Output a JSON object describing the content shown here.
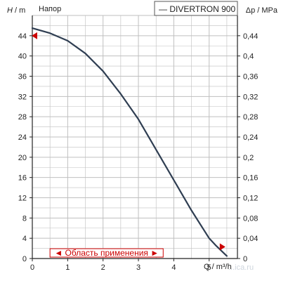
{
  "chart_data": {
    "type": "line",
    "series": [
      {
        "name": "DIVERTRON 900",
        "color": "#2f3e52",
        "x": [
          0,
          0.5,
          1,
          1.5,
          2,
          2.5,
          3,
          3.5,
          4,
          4.5,
          5,
          5.2,
          5.5
        ],
        "y": [
          45.5,
          44.5,
          43,
          40.5,
          37,
          32.5,
          27.5,
          21.5,
          15.5,
          9.5,
          4,
          2.5,
          0.5
        ]
      }
    ],
    "xlabel": "Q / m³/h",
    "ylabel_left_var": "H",
    "ylabel_left_unit": "m",
    "ylabel_right": "Δp / MPa",
    "title_top_left": "Напор",
    "legend_label": "— DIVERTRON 900",
    "legend_placement": "top-right",
    "xlim": [
      0,
      5.8
    ],
    "ylim_left": [
      0,
      48
    ],
    "ylim_right": [
      0,
      0.48
    ],
    "x_ticks": [
      0,
      1,
      2,
      3,
      4,
      5
    ],
    "x_tick_labels": [
      "0",
      "1",
      "2",
      "3",
      "4",
      "5"
    ],
    "y_ticks_left": [
      0,
      4,
      8,
      12,
      16,
      20,
      24,
      28,
      32,
      36,
      40,
      44
    ],
    "y_tick_labels_left": [
      "0",
      "4",
      "8",
      "12",
      "16",
      "20",
      "24",
      "28",
      "32",
      "36",
      "40",
      "44"
    ],
    "y_ticks_right": [
      0,
      0.04,
      0.08,
      0.12,
      0.16,
      0.2,
      0.24,
      0.28,
      0.32,
      0.36,
      0.4,
      0.44
    ],
    "y_tick_labels_right": [
      "0",
      "0,04",
      "0,08",
      "0,12",
      "0,16",
      "0,2",
      "0,24",
      "0,28",
      "0,32",
      "0,36",
      "0,4",
      "0,44"
    ],
    "grid": true,
    "grid_color": "#bfbfbf",
    "range_annotation": {
      "text": "◄ Область применения ►",
      "color": "#cc0000",
      "x_start": 0.5,
      "x_end": 3.7
    },
    "markers": [
      {
        "shape": "triangle-left",
        "x": 0,
        "y": 44,
        "color": "#cc0000"
      },
      {
        "shape": "triangle-right",
        "x": 5.3,
        "y": 2.3,
        "color": "#cc0000"
      }
    ],
    "watermark": "...ica.ru"
  }
}
